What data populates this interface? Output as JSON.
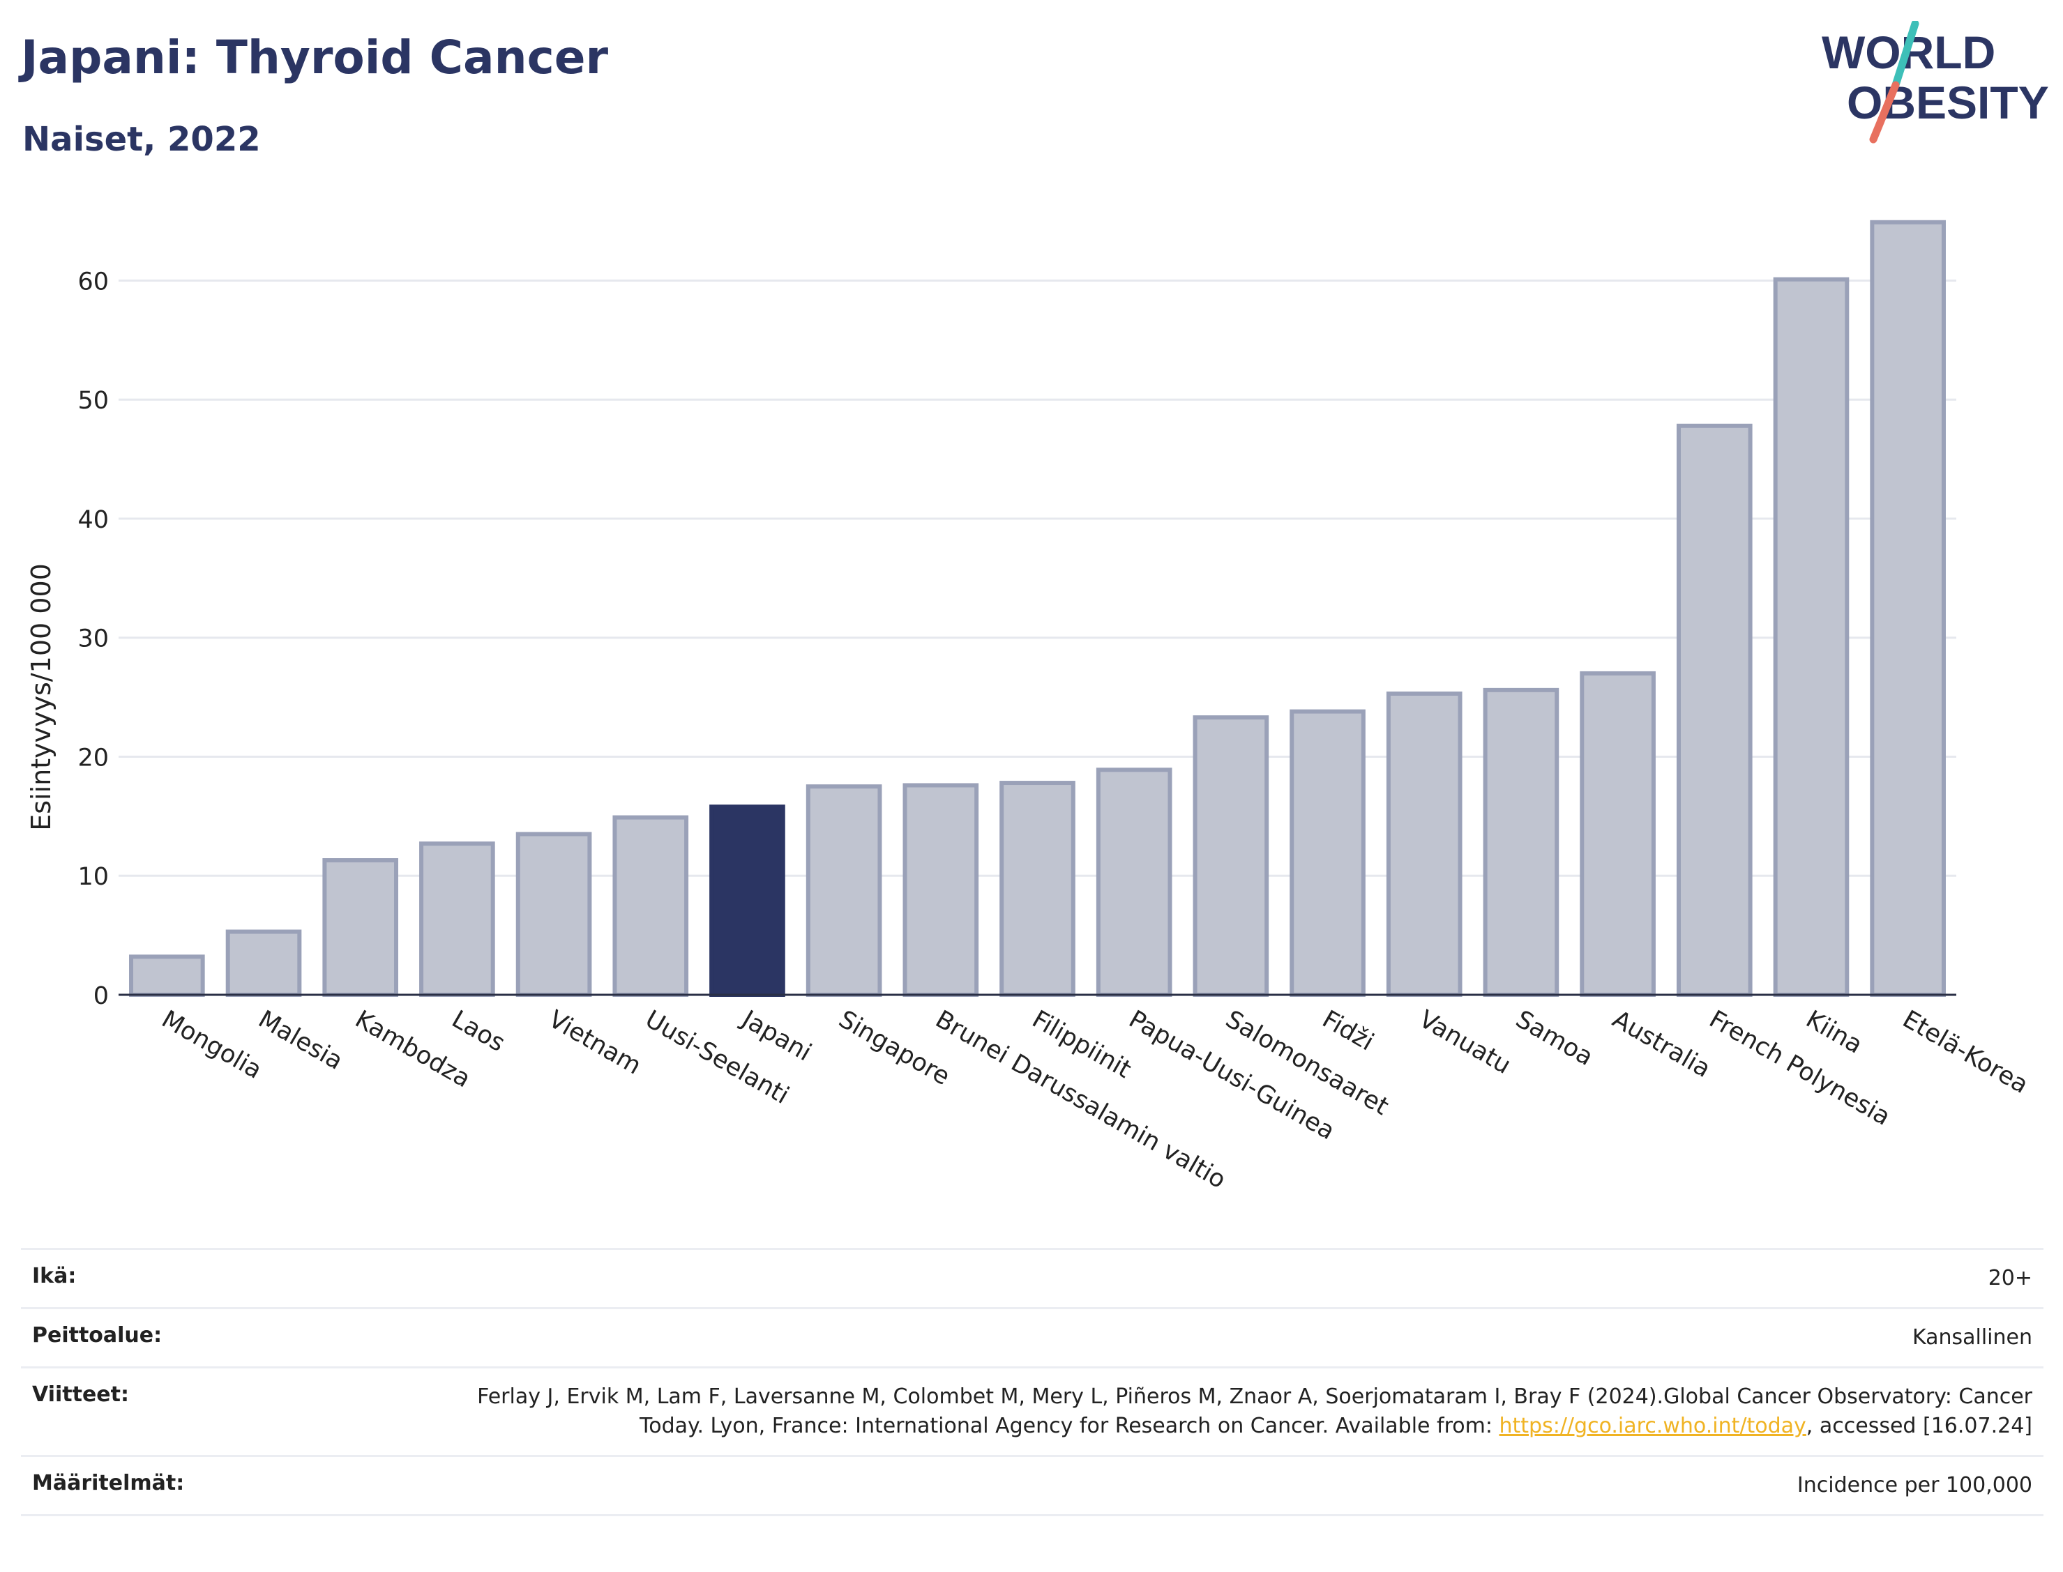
{
  "header": {
    "title": "Japani: Thyroid Cancer",
    "subtitle": "Naiset, 2022"
  },
  "logo": {
    "line1": "WORLD",
    "line2": "OBESITY"
  },
  "colors": {
    "bar_default": "#c0c4d0",
    "bar_stroke": "#9aa1b8",
    "bar_highlight": "#2b3563",
    "title": "#2b3563",
    "logo_teal": "#3dbfb8",
    "logo_coral": "#e8705f",
    "grid": "#e6e8ee",
    "link": "#f0b323"
  },
  "chart_data": {
    "type": "bar",
    "title": "Japani: Thyroid Cancer",
    "subtitle": "Naiset, 2022",
    "ylabel": "Esiintyvyys/100 000",
    "xlabel": "",
    "ylim": [
      0,
      66
    ],
    "yticks": [
      0,
      10,
      20,
      30,
      40,
      50,
      60
    ],
    "grid": true,
    "highlight": "Japani",
    "categories": [
      "Mongolia",
      "Malesia",
      "Kambodza",
      "Laos",
      "Vietnam",
      "Uusi-Seelanti",
      "Japani",
      "Singapore",
      "Brunei Darussalamin valtio",
      "Filippiinit",
      "Papua-Uusi-Guinea",
      "Salomonsaaret",
      "Fidži",
      "Vanuatu",
      "Samoa",
      "Australia",
      "French Polynesia",
      "Kiina",
      "Etelä-Korea"
    ],
    "values": [
      3.2,
      5.3,
      11.3,
      12.7,
      13.5,
      14.9,
      15.8,
      17.5,
      17.6,
      17.8,
      18.9,
      23.3,
      23.8,
      25.3,
      25.6,
      27.0,
      47.8,
      60.1,
      64.9
    ]
  },
  "info": {
    "rows": [
      {
        "label": "Ikä:",
        "value": "20+"
      },
      {
        "label": "Peittoalue:",
        "value": "Kansallinen"
      },
      {
        "label": "Viitteet:",
        "value_before": "Ferlay J, Ervik M, Lam F, Laversanne M, Colombet M, Mery L, Piñeros M, Znaor A, Soerjomataram I, Bray F (2024).Global Cancer Observatory: Cancer Today. Lyon, France: International Agency for Research on Cancer. Available from: ",
        "link": "https://gco.iarc.who.int/today",
        "value_after": ", accessed [16.07.24]"
      },
      {
        "label": "Määritelmät:",
        "value": "Incidence per 100,000"
      }
    ]
  }
}
